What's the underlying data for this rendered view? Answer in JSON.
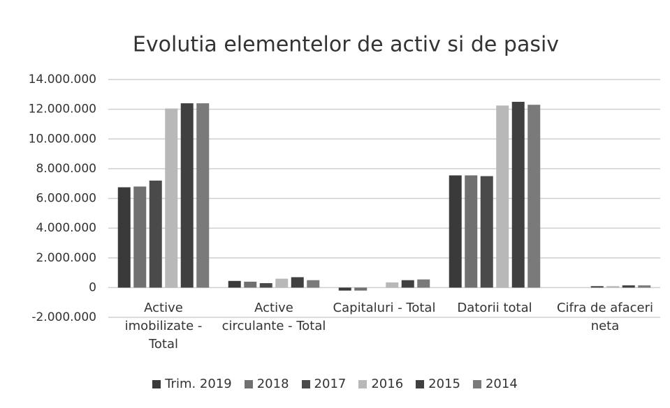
{
  "chart_data": {
    "type": "bar",
    "title": "Evolutia elementelor de activ si de pasiv",
    "categories": [
      "Active imobilizate - Total",
      "Active circulante - Total",
      "Capitaluri - Total",
      "Datorii total",
      "Cifra de afaceri neta"
    ],
    "series": [
      {
        "name": "Trim. 2019",
        "color": "#3a3a3a",
        "values": [
          6750000,
          450000,
          -200000,
          7550000,
          0
        ]
      },
      {
        "name": "2018",
        "color": "#707070",
        "values": [
          6800000,
          400000,
          -200000,
          7550000,
          0
        ]
      },
      {
        "name": "2017",
        "color": "#4a4a4a",
        "values": [
          7200000,
          300000,
          0,
          7500000,
          100000
        ]
      },
      {
        "name": "2016",
        "color": "#b8b8b8",
        "values": [
          12050000,
          600000,
          350000,
          12250000,
          100000
        ]
      },
      {
        "name": "2015",
        "color": "#404040",
        "values": [
          12400000,
          700000,
          500000,
          12500000,
          150000
        ]
      },
      {
        "name": "2014",
        "color": "#7a7a7a",
        "values": [
          12400000,
          500000,
          550000,
          12300000,
          150000
        ]
      }
    ],
    "ylim": [
      -2000000,
      14000000
    ],
    "yticks": [
      {
        "value": -2000000,
        "label": "-2.000.000"
      },
      0,
      {
        "value": 2000000,
        "label": "2.000.000"
      },
      {
        "value": 4000000,
        "label": "4.000.000"
      },
      {
        "value": 6000000,
        "label": "6.000.000"
      },
      {
        "value": 8000000,
        "label": "8.000.000"
      },
      {
        "value": 10000000,
        "label": "10.000.000"
      },
      {
        "value": 12000000,
        "label": "12.000.000"
      },
      {
        "value": 14000000,
        "label": "14.000.000"
      }
    ],
    "grid": true,
    "legend": "bottom"
  }
}
